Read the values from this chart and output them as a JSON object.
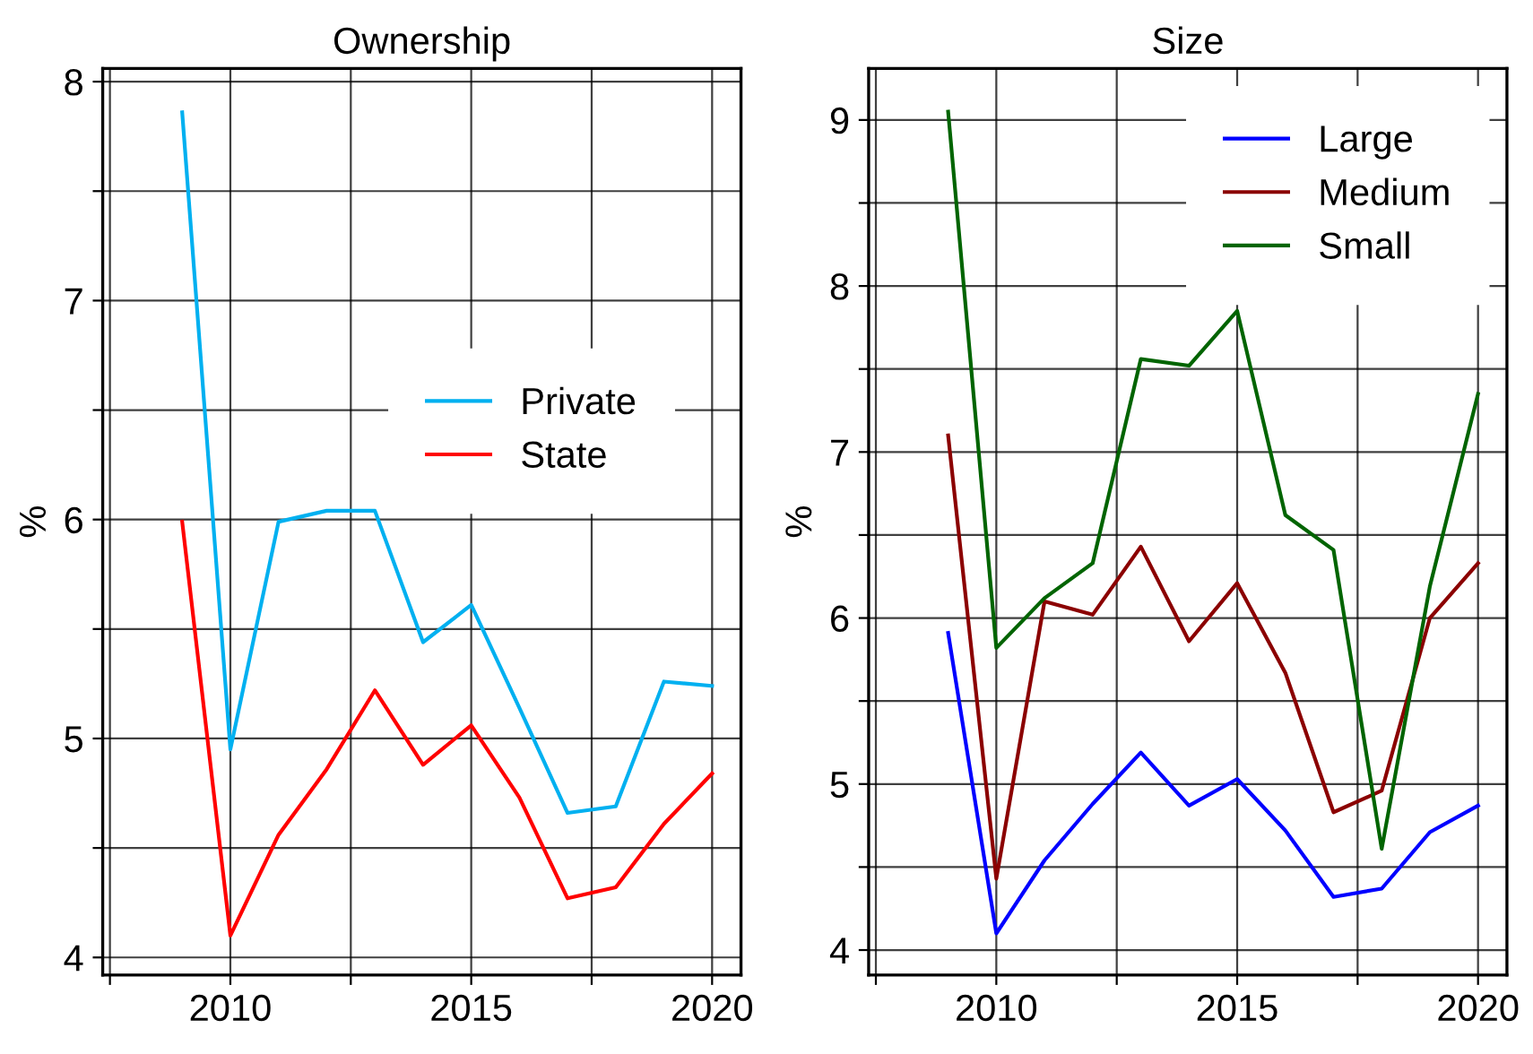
{
  "chart_data": [
    {
      "type": "line",
      "title": "Ownership",
      "ylabel": "%",
      "x": [
        2009,
        2010,
        2011,
        2012,
        2013,
        2014,
        2015,
        2016,
        2017,
        2018,
        2019,
        2020
      ],
      "series": [
        {
          "name": "Private",
          "color": "#00b0f0",
          "values": [
            7.86,
            4.95,
            5.99,
            6.04,
            6.04,
            5.44,
            5.61,
            5.14,
            4.66,
            4.69,
            5.26,
            5.24
          ]
        },
        {
          "name": "State",
          "color": "#ff0000",
          "values": [
            5.99,
            4.1,
            4.56,
            4.86,
            5.22,
            4.88,
            5.06,
            4.73,
            4.27,
            4.32,
            4.61,
            4.84
          ]
        }
      ],
      "xlim": [
        2007.35,
        2020.6
      ],
      "ylim": [
        3.92,
        8.06
      ],
      "xticks": [
        {
          "value": 2007.5,
          "label": null
        },
        2010,
        {
          "value": 2012.5,
          "label": null
        },
        2015,
        {
          "value": 2017.5,
          "label": null
        },
        2020
      ],
      "yticks": [
        4,
        {
          "value": 4.5,
          "label": null
        },
        5,
        {
          "value": 5.5,
          "label": null
        },
        6,
        {
          "value": 6.5,
          "label": null
        },
        7,
        {
          "value": 7.5,
          "label": null
        },
        8
      ],
      "grid": true,
      "legend": "right",
      "marker": "none",
      "line_style": "solid"
    },
    {
      "type": "line",
      "title": "Size",
      "ylabel": "%",
      "x": [
        2009,
        2010,
        2011,
        2012,
        2013,
        2014,
        2015,
        2016,
        2017,
        2018,
        2019,
        2020
      ],
      "series": [
        {
          "name": "Large",
          "color": "#0000ff",
          "values": [
            5.91,
            4.1,
            4.54,
            4.88,
            5.19,
            4.87,
            5.03,
            4.72,
            4.32,
            4.37,
            4.71,
            4.87
          ]
        },
        {
          "name": "Medium",
          "color": "#8b0000",
          "values": [
            7.1,
            4.43,
            6.1,
            6.02,
            6.43,
            5.86,
            6.21,
            5.67,
            4.83,
            4.96,
            6.0,
            6.33
          ]
        },
        {
          "name": "Small",
          "color": "#006400",
          "values": [
            9.05,
            5.82,
            6.12,
            6.33,
            7.56,
            7.52,
            7.85,
            6.62,
            6.41,
            4.61,
            6.19,
            7.35
          ]
        }
      ],
      "xlim": [
        2007.35,
        2020.6
      ],
      "ylim": [
        3.85,
        9.31
      ],
      "xticks": [
        {
          "value": 2007.5,
          "label": null
        },
        2010,
        {
          "value": 2012.5,
          "label": null
        },
        2015,
        {
          "value": 2017.5,
          "label": null
        },
        2020
      ],
      "yticks": [
        4,
        {
          "value": 4.5,
          "label": null
        },
        5,
        {
          "value": 5.5,
          "label": null
        },
        6,
        {
          "value": 6.5,
          "label": null
        },
        7,
        {
          "value": 7.5,
          "label": null
        },
        8,
        {
          "value": 8.5,
          "label": null
        },
        9
      ],
      "grid": true,
      "legend": "upper right",
      "marker": "none",
      "line_style": "solid"
    }
  ]
}
